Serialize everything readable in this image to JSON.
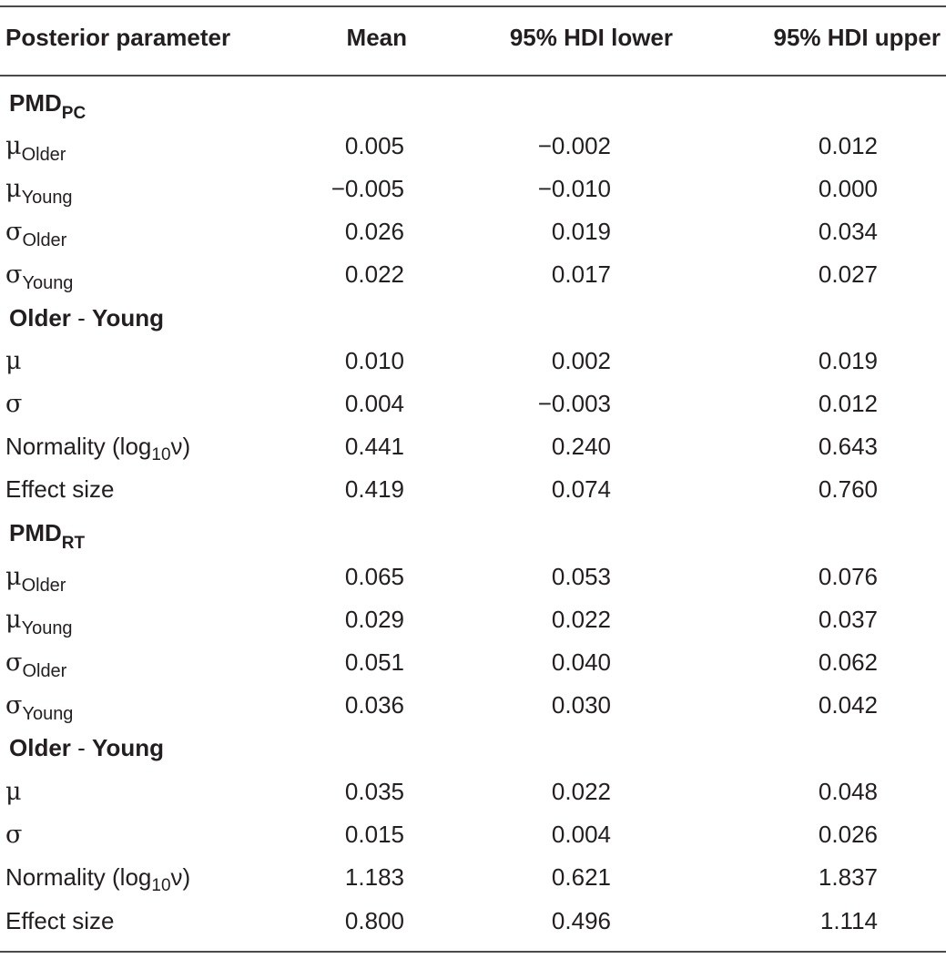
{
  "header": {
    "param": "Posterior parameter",
    "mean": "Mean",
    "lower": "95% HDI lower",
    "upper": "95% HDI upper"
  },
  "sections": [
    {
      "title_main": "PMD",
      "title_sub": "PC",
      "rows": [
        {
          "symbol": "μ",
          "sub": "Older",
          "mean": "0.005",
          "lower": "−0.002",
          "upper": "0.012"
        },
        {
          "symbol": "μ",
          "sub": "Young",
          "mean": "−0.005",
          "lower": "−0.010",
          "upper": "0.000"
        },
        {
          "symbol": "σ",
          "sub": "Older",
          "mean": "0.026",
          "lower": "0.019",
          "upper": "0.034"
        },
        {
          "symbol": "σ",
          "sub": "Young",
          "mean": "0.022",
          "lower": "0.017",
          "upper": "0.027"
        }
      ]
    },
    {
      "title_a": "Older",
      "title_sep": " - ",
      "title_b": "Young",
      "rows": [
        {
          "symbol": "μ",
          "mean": "0.010",
          "lower": "0.002",
          "upper": "0.019"
        },
        {
          "symbol": "σ",
          "mean": "0.004",
          "lower": "−0.003",
          "upper": "0.012"
        },
        {
          "label_a": "Normality (log",
          "label_sub": "10",
          "label_b": "ν)",
          "mean": "0.441",
          "lower": "0.240",
          "upper": "0.643"
        },
        {
          "label": "Effect size",
          "mean": "0.419",
          "lower": "0.074",
          "upper": "0.760"
        }
      ]
    },
    {
      "title_main": "PMD",
      "title_sub": "RT",
      "rows": [
        {
          "symbol": "μ",
          "sub": "Older",
          "mean": "0.065",
          "lower": "0.053",
          "upper": "0.076"
        },
        {
          "symbol": "μ",
          "sub": "Young",
          "mean": "0.029",
          "lower": "0.022",
          "upper": "0.037"
        },
        {
          "symbol": "σ",
          "sub": "Older",
          "mean": "0.051",
          "lower": "0.040",
          "upper": "0.062"
        },
        {
          "symbol": "σ",
          "sub": "Young",
          "mean": "0.036",
          "lower": "0.030",
          "upper": "0.042"
        }
      ]
    },
    {
      "title_a": "Older",
      "title_sep": " - ",
      "title_b": "Young",
      "rows": [
        {
          "symbol": "μ",
          "mean": "0.035",
          "lower": "0.022",
          "upper": "0.048"
        },
        {
          "symbol": "σ",
          "mean": "0.015",
          "lower": "0.004",
          "upper": "0.026"
        },
        {
          "label_a": "Normality (log",
          "label_sub": "10",
          "label_b": "ν)",
          "mean": "1.183",
          "lower": "0.621",
          "upper": "1.837"
        },
        {
          "label": "Effect size",
          "mean": "0.800",
          "lower": "0.496",
          "upper": "1.114"
        }
      ]
    }
  ]
}
